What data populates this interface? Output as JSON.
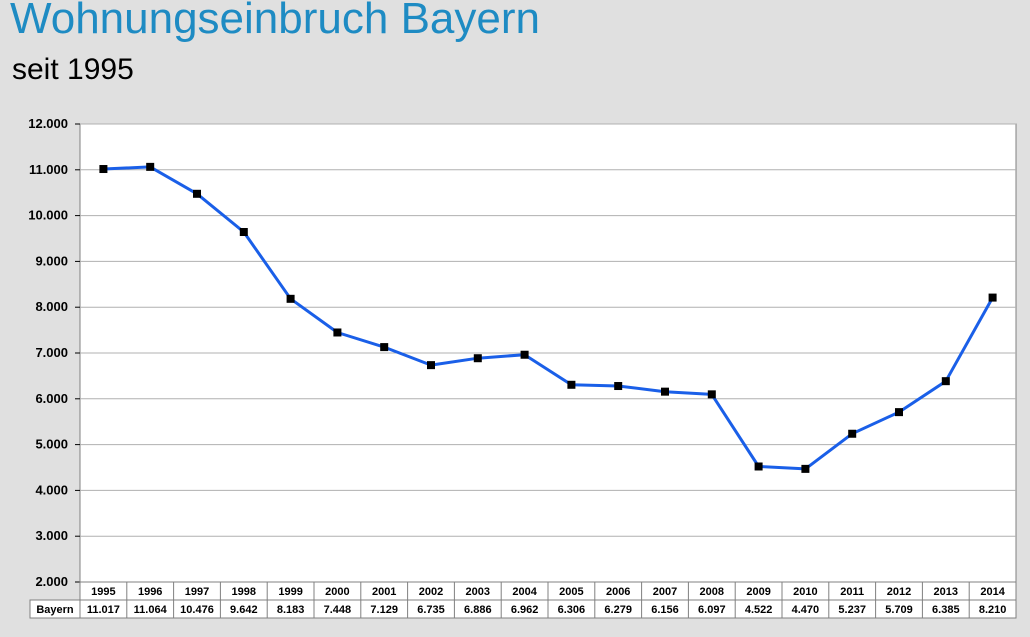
{
  "title": "Wohnungseinbruch Bayern",
  "subtitle": "seit 1995",
  "chart_data": {
    "type": "line",
    "title": "Wohnungseinbruch Bayern",
    "subtitle": "seit 1995",
    "categories": [
      "1995",
      "1996",
      "1997",
      "1998",
      "1999",
      "2000",
      "2001",
      "2002",
      "2003",
      "2004",
      "2005",
      "2006",
      "2007",
      "2008",
      "2009",
      "2010",
      "2011",
      "2012",
      "2013",
      "2014"
    ],
    "series": [
      {
        "name": "Bayern",
        "values": [
          11017,
          11064,
          10476,
          9642,
          8183,
          7448,
          7129,
          6735,
          6886,
          6962,
          6306,
          6279,
          6156,
          6097,
          4522,
          4470,
          5237,
          5709,
          6385,
          8210
        ],
        "value_labels": [
          "11.017",
          "11.064",
          "10.476",
          "9.642",
          "8.183",
          "7.448",
          "7.129",
          "6.735",
          "6.886",
          "6.962",
          "6.306",
          "6.279",
          "6.156",
          "6.097",
          "4.522",
          "4.470",
          "5.237",
          "5.709",
          "6.385",
          "8.210"
        ],
        "color": "#1a5fe8",
        "marker_color": "#000000"
      }
    ],
    "y_ticks": [
      2000,
      3000,
      4000,
      5000,
      6000,
      7000,
      8000,
      9000,
      10000,
      11000,
      12000
    ],
    "y_tick_labels": [
      "2.000",
      "3.000",
      "4.000",
      "5.000",
      "6.000",
      "7.000",
      "8.000",
      "9.000",
      "10.000",
      "11.000",
      "12.000"
    ],
    "ylim": [
      2000,
      12000
    ],
    "grid": true,
    "legend": "data-table",
    "xlabel": "",
    "ylabel": ""
  },
  "colors": {
    "title": "#1e8bc3",
    "background": "#e0e0e0",
    "plot_background": "#ffffff",
    "gridline": "#b0b0b0"
  }
}
